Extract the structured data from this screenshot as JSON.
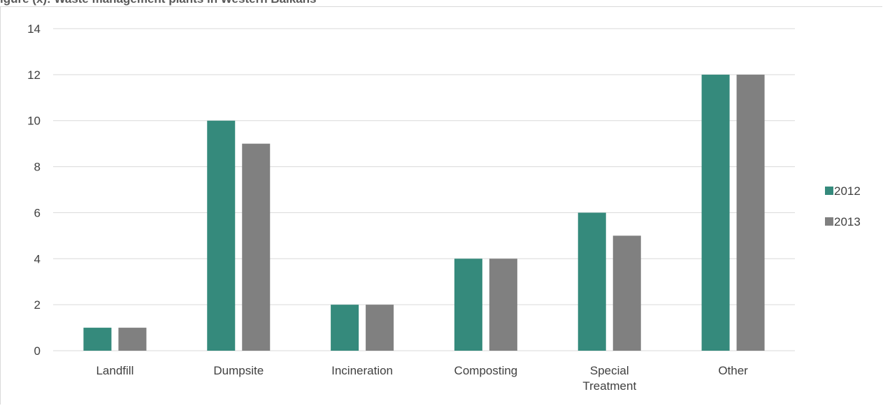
{
  "chart_data": {
    "type": "bar",
    "title": "igure (x): Waste management plants in Western Balkans",
    "categories": [
      "Landfill",
      "Dumpsite",
      "Incineration",
      "Composting",
      "Special Treatment",
      "Other"
    ],
    "series": [
      {
        "name": "2012",
        "color": "#358a7c",
        "values": [
          1,
          10,
          2,
          4,
          6,
          12
        ]
      },
      {
        "name": "2013",
        "color": "#808080",
        "values": [
          1,
          9,
          2,
          4,
          5,
          12
        ]
      }
    ],
    "ylim": [
      0,
      14
    ],
    "yticks": [
      0,
      2,
      4,
      6,
      8,
      10,
      12,
      14
    ],
    "grid": true,
    "legend": "right",
    "xlabel": "",
    "ylabel": ""
  }
}
